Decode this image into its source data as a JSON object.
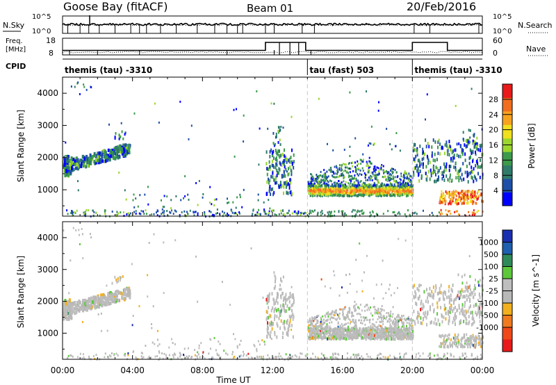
{
  "header": {
    "station": "Goose Bay (fitACF)",
    "beam": "Beam 01",
    "date": "20/Feb/2016"
  },
  "noise_panel": {
    "left_label": "N.Sky",
    "right_label": "N.Search",
    "left_ticks": [
      "10^5",
      "10^0"
    ],
    "right_ticks": [
      "10^5",
      "10^0"
    ]
  },
  "freq_panel": {
    "left_label_1": "Freq.",
    "left_label_2": "[MHz]",
    "left_ticks": [
      "18",
      "8"
    ],
    "right_label": "Nave",
    "right_ticks": [
      "60",
      "0"
    ]
  },
  "cpid": {
    "label": "CPID",
    "segments": [
      {
        "name": "themis (tau) -3310",
        "start_hour": 0,
        "end_hour": 14
      },
      {
        "name": "tau (fast) 503",
        "start_hour": 14,
        "end_hour": 20
      },
      {
        "name": "themis (tau) -3310",
        "start_hour": 20,
        "end_hour": 24
      }
    ]
  },
  "x_axis": {
    "title": "Time UT",
    "ticks": [
      "00:00",
      "04:00",
      "08:00",
      "12:00",
      "16:00",
      "20:00",
      "00:00"
    ],
    "range_hours": [
      0,
      24
    ]
  },
  "power_panel": {
    "ylabel": "Slant Range [km]",
    "yticks": [
      "4000",
      "3000",
      "2000",
      "1000"
    ],
    "colorbar_label": "Power [dB]",
    "colorbar_ticks": [
      "28",
      "24",
      "20",
      "16",
      "12",
      "8",
      "4"
    ]
  },
  "velocity_panel": {
    "ylabel": "Slant Range [km]",
    "yticks": [
      "4000",
      "3000",
      "2000",
      "1000"
    ],
    "colorbar_label": "Velocity [m s^-1]",
    "colorbar_ticks": [
      "1000",
      "500",
      "100",
      "25",
      "-25",
      "-100",
      "-500",
      "-1000"
    ]
  },
  "chart_data": {
    "type": "heatmap",
    "x_unit": "hours UT",
    "y_unit": "km",
    "xlim": [
      0,
      24
    ],
    "ylim": [
      180,
      4500
    ],
    "power_colors": [
      "#0000ff",
      "#1e4fa8",
      "#2f7b6a",
      "#3c9a4b",
      "#9bd62e",
      "#f0e01e",
      "#f7a21e",
      "#f06e1e",
      "#e81a1a"
    ],
    "power_bounds_db": [
      0,
      4,
      8,
      12,
      16,
      20,
      24,
      28,
      32
    ],
    "velocity_colors": [
      "#1a2fb0",
      "#1e5fae",
      "#2f8a5a",
      "#5cc83a",
      "#bebebe",
      "#b8b8b8",
      "#f2b01e",
      "#f07a1e",
      "#f04818",
      "#e81a1a"
    ],
    "velocity_bounds": [
      1000,
      500,
      100,
      25,
      -25,
      -100,
      -500,
      -1000
    ],
    "features": [
      {
        "name": "early band",
        "t": [
          0.0,
          3.8
        ],
        "range_km": [
          1700,
          2500
        ]
      },
      {
        "name": "noon patches",
        "t": [
          11.6,
          13.2
        ],
        "range_km": [
          900,
          2300
        ]
      },
      {
        "name": "main echo band",
        "t": [
          14.0,
          20.0
        ],
        "range_km": [
          850,
          1200
        ]
      },
      {
        "name": "main upper echoes",
        "t": [
          14.0,
          20.0
        ],
        "range_km": [
          1200,
          2000
        ]
      },
      {
        "name": "late echoes",
        "t": [
          20.0,
          24.0
        ],
        "range_km": [
          600,
          2600
        ]
      },
      {
        "name": "ground scatter near range",
        "t": [
          0.0,
          24.0
        ],
        "range_km": [
          180,
          400
        ]
      }
    ]
  }
}
